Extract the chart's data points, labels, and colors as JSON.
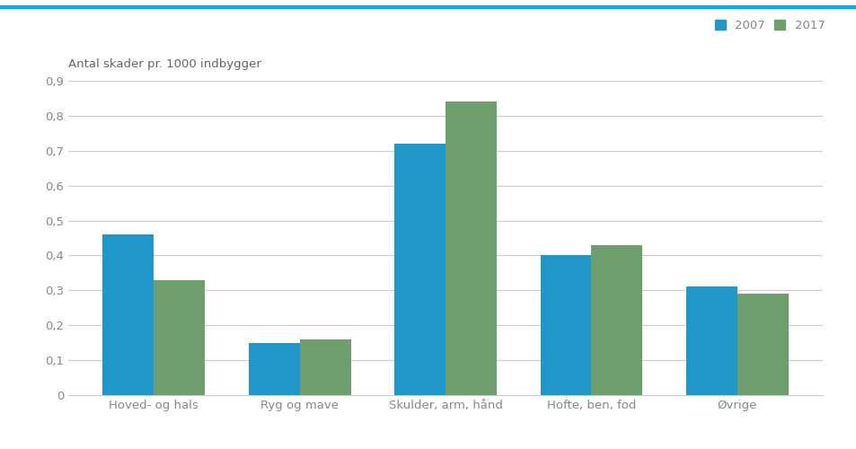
{
  "categories": [
    "Hoved- og hals",
    "Ryg og mave",
    "Skulder, arm, hånd",
    "Hofte, ben, fod",
    "Øvrige"
  ],
  "values_2007": [
    0.46,
    0.15,
    0.72,
    0.4,
    0.31
  ],
  "values_2017": [
    0.33,
    0.16,
    0.84,
    0.43,
    0.29
  ],
  "color_2007": "#2196C8",
  "color_2017": "#6E9E6E",
  "ylabel": "Antal skader pr. 1000 indbygger",
  "ylim": [
    0,
    0.9
  ],
  "yticks": [
    0,
    0.1,
    0.2,
    0.3,
    0.4,
    0.5,
    0.6,
    0.7,
    0.8,
    0.9
  ],
  "legend_labels": [
    "2007",
    "2017"
  ],
  "bar_width": 0.35,
  "background_color": "#ffffff",
  "plot_bg_color": "#ffffff",
  "grid_color": "#cccccc",
  "top_border_color": "#00AEEF",
  "ylabel_fontsize": 9.5,
  "tick_fontsize": 9.5,
  "legend_fontsize": 9.5,
  "tick_color": "#888888"
}
